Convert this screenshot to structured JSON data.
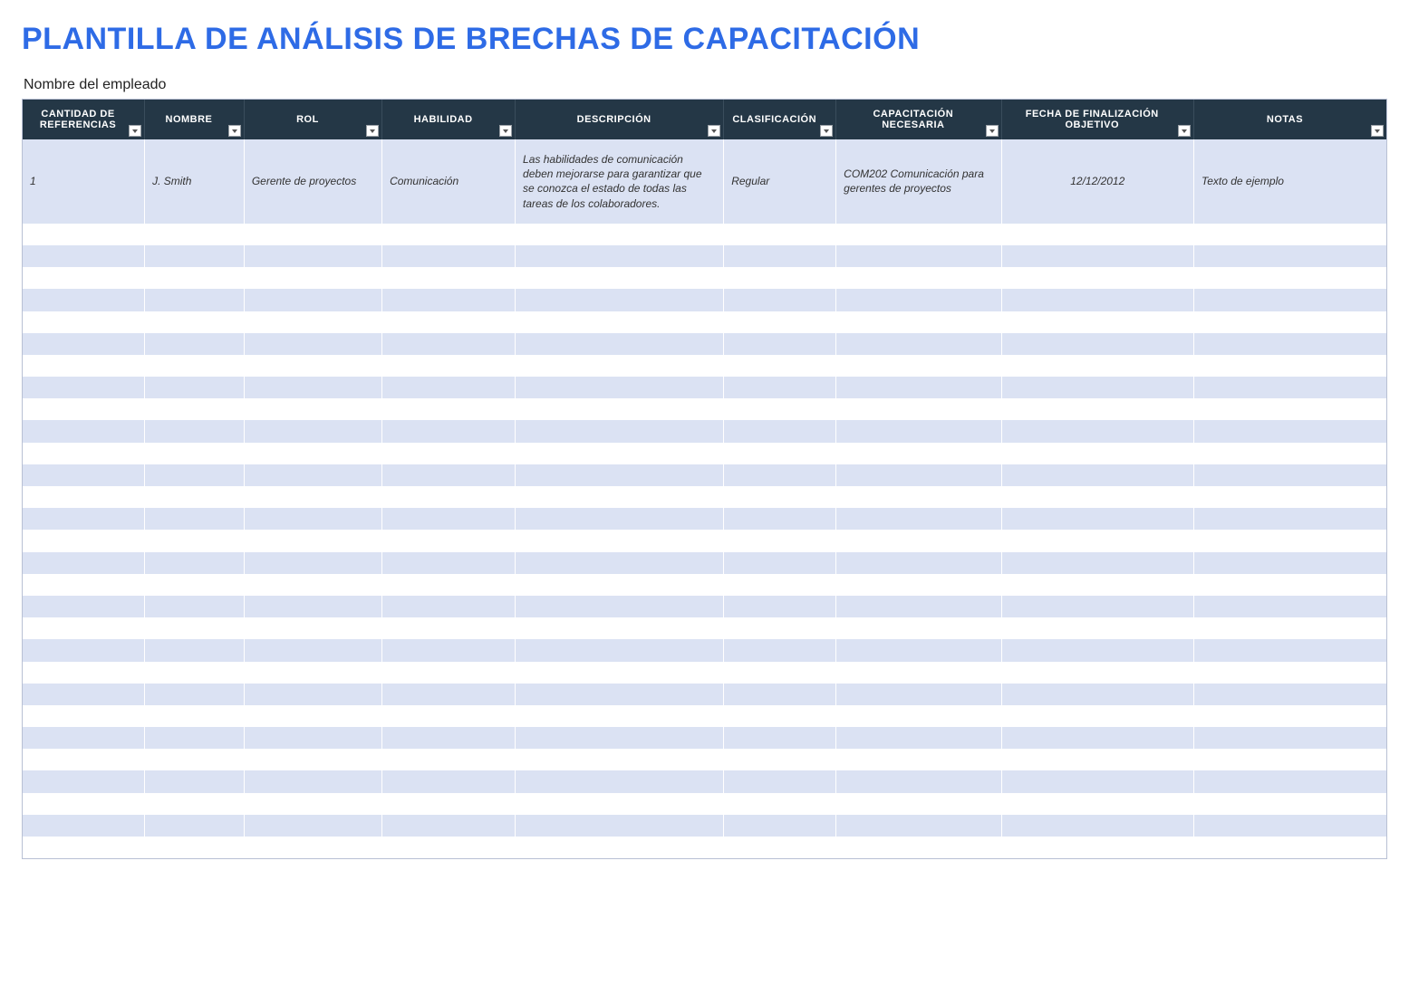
{
  "title": "PLANTILLA DE ANÁLISIS DE BRECHAS DE CAPACITACIÓN",
  "subtitle": "Nombre del empleado",
  "colors": {
    "title": "#2e6be6",
    "header_bg": "#243746",
    "header_fg": "#ffffff",
    "row_even": "#dbe2f3",
    "row_odd": "#ffffff",
    "border": "#b8c0d4"
  },
  "columns": [
    {
      "key": "ref",
      "label": "CANTIDAD DE REFERENCIAS",
      "width_pct": 7.6
    },
    {
      "key": "name",
      "label": "NOMBRE",
      "width_pct": 6.2
    },
    {
      "key": "role",
      "label": "ROL",
      "width_pct": 8.6
    },
    {
      "key": "skill",
      "label": "HABILIDAD",
      "width_pct": 8.3
    },
    {
      "key": "desc",
      "label": "DESCRIPCIÓN",
      "width_pct": 13.0
    },
    {
      "key": "class",
      "label": "CLASIFICACIÓN",
      "width_pct": 7.0
    },
    {
      "key": "train",
      "label": "CAPACITACIÓN NECESARIA",
      "width_pct": 10.3
    },
    {
      "key": "date",
      "label": "FECHA DE FINALIZACIÓN OBJETIVO",
      "width_pct": 12.0
    },
    {
      "key": "notes",
      "label": "NOTAS",
      "width_pct": 12.0
    }
  ],
  "rows": [
    {
      "ref": "1",
      "name": "J. Smith",
      "role": "Gerente de proyectos",
      "skill": "Comunicación",
      "desc": "Las habilidades de comunicación deben mejorarse para garantizar que se conozca el estado de todas las tareas de los colaboradores.",
      "class": "Regular",
      "train": "COM202 Comunicación para gerentes de proyectos",
      "date": "12/12/2012",
      "notes": "Texto de ejemplo"
    }
  ],
  "empty_row_count": 29
}
